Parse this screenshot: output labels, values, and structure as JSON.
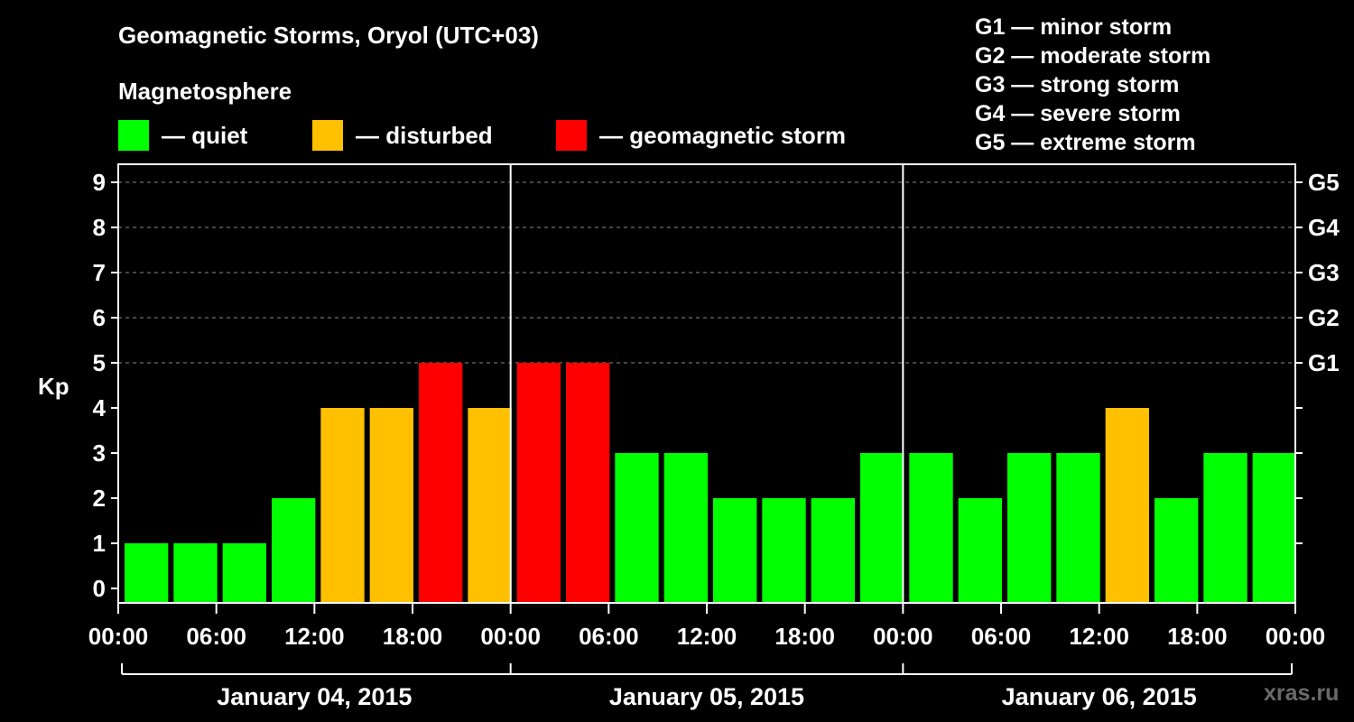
{
  "title": "Geomagnetic Storms, Oryol (UTC+03)",
  "subtitle": "Magnetosphere",
  "legend": [
    {
      "label": "— quiet",
      "color": "#00ff00"
    },
    {
      "label": "— disturbed",
      "color": "#ffc000"
    },
    {
      "label": "— geomagnetic storm",
      "color": "#ff0000"
    }
  ],
  "storm_levels": [
    "G1 — minor storm",
    "G2 — moderate storm",
    "G3 — strong storm",
    "G4 — severe storm",
    "G5 — extreme storm"
  ],
  "watermark": "xras.ru",
  "chart_data": {
    "type": "bar",
    "ylabel": "Kp",
    "ylim": [
      0,
      9
    ],
    "y_ticks": [
      0,
      1,
      2,
      3,
      4,
      5,
      6,
      7,
      8,
      9
    ],
    "right_axis_labels": [
      {
        "kp": 5,
        "label": "G1"
      },
      {
        "kp": 6,
        "label": "G2"
      },
      {
        "kp": 7,
        "label": "G3"
      },
      {
        "kp": 8,
        "label": "G4"
      },
      {
        "kp": 9,
        "label": "G5"
      }
    ],
    "x_tick_labels": [
      "00:00",
      "06:00",
      "12:00",
      "18:00",
      "00:00",
      "06:00",
      "12:00",
      "18:00",
      "00:00",
      "06:00",
      "12:00",
      "18:00",
      "00:00"
    ],
    "days": [
      "January 04, 2015",
      "January 05, 2015",
      "January 06, 2015"
    ],
    "interval_hours": 3,
    "values": [
      1,
      1,
      1,
      2,
      4,
      4,
      5,
      4,
      5,
      5,
      3,
      3,
      2,
      2,
      2,
      3,
      3,
      2,
      3,
      3,
      4,
      2,
      3,
      3
    ],
    "colors": {
      "quiet": "#00ff00",
      "disturbed": "#ffc000",
      "storm": "#ff0000"
    },
    "grid": "dashed horizontal lines at Kp 5–9"
  }
}
